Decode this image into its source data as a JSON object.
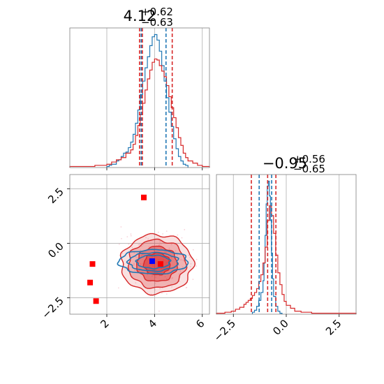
{
  "chart_data": [
    {
      "panel": "marginal-x",
      "type": "histogram",
      "title": {
        "main": "4.12",
        "sup": "+0.62",
        "sub": "−0.63"
      },
      "xlim": [
        0.45,
        6.3
      ],
      "grid": true,
      "series": [
        {
          "color": "#1f77b4",
          "bin_edges": [
            2.0,
            2.1,
            2.2,
            2.3,
            2.4,
            2.5,
            2.6,
            2.7,
            2.8,
            2.9,
            3.0,
            3.1,
            3.2,
            3.3,
            3.4,
            3.5,
            3.6,
            3.7,
            3.8,
            3.9,
            4.0,
            4.1,
            4.2,
            4.3,
            4.4,
            4.5,
            4.6,
            4.7,
            4.8,
            4.9,
            5.0,
            5.1,
            5.2,
            5.3,
            5.4
          ],
          "counts": [
            1,
            2,
            3,
            3,
            6,
            7,
            10,
            13,
            14,
            18,
            23,
            30,
            40,
            52,
            66,
            78,
            90,
            100,
            110,
            118,
            120,
            115,
            105,
            92,
            78,
            63,
            50,
            37,
            26,
            17,
            10,
            6,
            3,
            2
          ]
        },
        {
          "color": "#d62728",
          "bin_edges": [
            0.45,
            1.0,
            1.5,
            2.0,
            2.2,
            2.4,
            2.6,
            2.8,
            3.0,
            3.1,
            3.2,
            3.3,
            3.4,
            3.5,
            3.6,
            3.7,
            3.8,
            3.9,
            4.0,
            4.1,
            4.2,
            4.3,
            4.4,
            4.5,
            4.6,
            4.7,
            4.8,
            4.9,
            5.0,
            5.1,
            5.2,
            5.3,
            5.4,
            5.6,
            5.8,
            6.0,
            6.3
          ],
          "counts": [
            1,
            1,
            2,
            3,
            5,
            7,
            9,
            13,
            16,
            21,
            29,
            38,
            48,
            58,
            70,
            80,
            88,
            95,
            98,
            97,
            92,
            87,
            82,
            74,
            64,
            54,
            45,
            36,
            27,
            20,
            13,
            9,
            6,
            4,
            2,
            1
          ]
        }
      ],
      "quantiles": [
        {
          "color": "#1f77b4",
          "values": [
            3.44,
            4.48
          ]
        },
        {
          "color": "#d62728",
          "values": [
            3.49,
            4.74
          ]
        },
        {
          "color": "#d62728",
          "values": [
            3.37
          ],
          "note": ""
        }
      ]
    },
    {
      "panel": "marginal-y",
      "type": "histogram",
      "title": {
        "main": "−0.95",
        "sup": "+0.56",
        "sub": "−0.65"
      },
      "xlim": [
        -3.3,
        3.3
      ],
      "xticks": [
        "−2.5",
        "0.0",
        "2.5"
      ],
      "xtick_values": [
        -2.5,
        0.0,
        2.5
      ],
      "grid": true,
      "series": [
        {
          "color": "#1f77b4",
          "bin_edges": [
            -1.6,
            -1.5,
            -1.4,
            -1.3,
            -1.2,
            -1.1,
            -1.05,
            -1.0,
            -0.95,
            -0.9,
            -0.85,
            -0.8,
            -0.75,
            -0.7,
            -0.65,
            -0.6,
            -0.5,
            -0.4,
            -0.3,
            -0.2
          ],
          "counts": [
            2,
            4,
            8,
            14,
            22,
            34,
            52,
            80,
            112,
            130,
            135,
            120,
            95,
            62,
            36,
            18,
            8,
            3,
            1
          ]
        },
        {
          "color": "#d62728",
          "bin_edges": [
            -3.3,
            -2.9,
            -2.6,
            -2.4,
            -2.2,
            -2.0,
            -1.9,
            -1.8,
            -1.7,
            -1.6,
            -1.5,
            -1.4,
            -1.3,
            -1.2,
            -1.1,
            -1.0,
            -0.9,
            -0.8,
            -0.7,
            -0.6,
            -0.5,
            -0.4,
            -0.3,
            -0.2,
            -0.1,
            0.0,
            0.2,
            0.4,
            0.7,
            1.2,
            1.7,
            2.2,
            2.8,
            3.3
          ],
          "counts": [
            1,
            2,
            3,
            5,
            7,
            10,
            12,
            14,
            16,
            19,
            22,
            26,
            33,
            40,
            52,
            68,
            95,
            110,
            100,
            82,
            60,
            42,
            30,
            20,
            13,
            9,
            6,
            3,
            2,
            1,
            1,
            1,
            1
          ]
        }
      ],
      "quantiles": [
        {
          "color": "#1f77b4",
          "values": [
            -1.28,
            -0.69
          ]
        },
        {
          "color": "#d62728",
          "values": [
            -1.65,
            -0.88,
            -0.49
          ]
        }
      ]
    },
    {
      "panel": "joint",
      "type": "scatter",
      "xlim": [
        0.45,
        6.3
      ],
      "ylim": [
        -3.25,
        3.15
      ],
      "xticks": [
        "2",
        "4",
        "6"
      ],
      "xtick_values": [
        2,
        4,
        6
      ],
      "yticks": [
        "2.5",
        "0.0",
        "−2.5"
      ],
      "ytick_values": [
        2.5,
        0.0,
        -2.5
      ],
      "grid": true,
      "red_contours": {
        "color": "#d62728",
        "center": [
          4.1,
          -0.95
        ],
        "levels": [
          {
            "rx": 1.5,
            "ry": 1.35,
            "opacity": 0.25
          },
          {
            "rx": 1.2,
            "ry": 1.1,
            "opacity": 0.45
          },
          {
            "rx": 0.85,
            "ry": 0.8,
            "opacity": 0.7
          },
          {
            "rx": 0.55,
            "ry": 0.5,
            "opacity": 0.85
          }
        ]
      },
      "blue_contours": {
        "color": "#1f77b4",
        "center": [
          3.95,
          -0.85
        ],
        "levels": [
          {
            "rx": 1.45,
            "ry": 0.55
          },
          {
            "rx": 1.05,
            "ry": 0.42
          },
          {
            "rx": 0.7,
            "ry": 0.3
          }
        ]
      },
      "red_markers": {
        "color": "#ff0000",
        "points": [
          [
            3.55,
            2.1
          ],
          [
            1.4,
            -0.95
          ],
          [
            1.3,
            -1.8
          ],
          [
            1.55,
            -2.65
          ],
          [
            4.25,
            -0.95
          ]
        ]
      },
      "blue_marker": {
        "color": "#0000ff",
        "point": [
          3.9,
          -0.82
        ]
      }
    }
  ]
}
